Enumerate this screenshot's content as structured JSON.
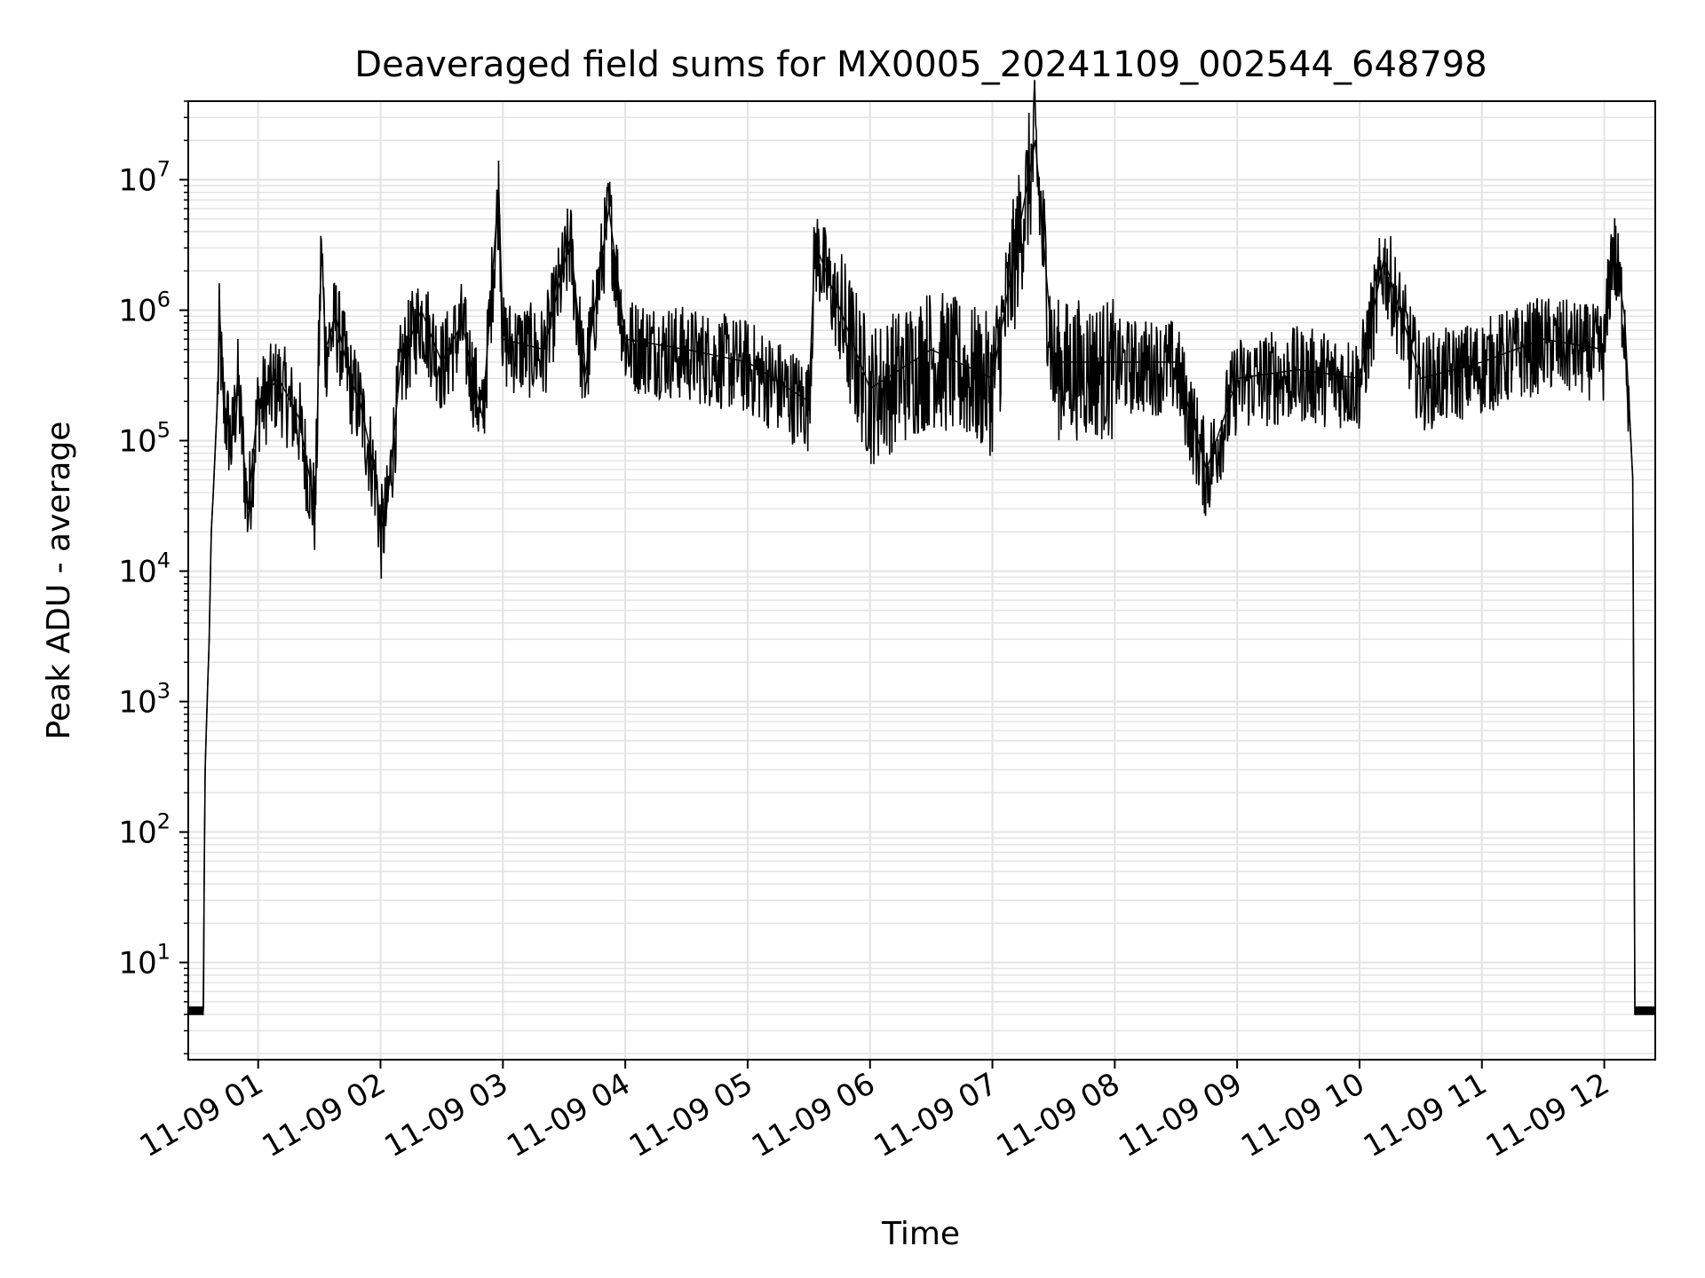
{
  "chart_data": {
    "type": "line",
    "title": "Deaveraged field sums for MX0005_20241109_002544_648798",
    "xlabel": "Time",
    "ylabel": "Peak ADU - average",
    "yscale": "log",
    "grid": true,
    "legend": "none",
    "line_color": "#000000",
    "x_tick_labels": [
      "11-09 01",
      "11-09 02",
      "11-09 03",
      "11-09 04",
      "11-09 05",
      "11-09 06",
      "11-09 07",
      "11-09 08",
      "11-09 09",
      "11-09 10",
      "11-09 11",
      "11-09 12"
    ],
    "y_tick_labels": [
      {
        "base": "10",
        "exp": "1"
      },
      {
        "base": "10",
        "exp": "2"
      },
      {
        "base": "10",
        "exp": "3"
      },
      {
        "base": "10",
        "exp": "4"
      },
      {
        "base": "10",
        "exp": "5"
      },
      {
        "base": "10",
        "exp": "6"
      },
      {
        "base": "10",
        "exp": "7"
      }
    ],
    "xlim": [
      "2024-11-09 00:25:44",
      "2024-11-09 12:25:00"
    ],
    "ylim": [
      1.8,
      40000000
    ],
    "series": [
      {
        "points": [
          [
            "2024-11-09 00:26",
            4
          ],
          [
            "2024-11-09 00:33",
            4
          ],
          [
            "2024-11-09 00:34",
            300
          ],
          [
            "2024-11-09 00:35",
            1000
          ],
          [
            "2024-11-09 00:36",
            3000
          ],
          [
            "2024-11-09 00:37",
            20000
          ],
          [
            "2024-11-09 00:38",
            40000
          ],
          [
            "2024-11-09 00:40",
            200000
          ],
          [
            "2024-11-09 00:41",
            800000
          ],
          [
            "2024-11-09 00:43",
            200000
          ],
          [
            "2024-11-09 00:47",
            100000
          ],
          [
            "2024-11-09 00:50",
            300000
          ],
          [
            "2024-11-09 00:55",
            30000
          ],
          [
            "2024-11-09 01:00",
            200000
          ],
          [
            "2024-11-09 01:10",
            300000
          ],
          [
            "2024-11-09 01:20",
            150000
          ],
          [
            "2024-11-09 01:28",
            30000
          ],
          [
            "2024-11-09 01:31",
            3500000
          ],
          [
            "2024-11-09 01:33",
            500000
          ],
          [
            "2024-11-09 01:38",
            900000
          ],
          [
            "2024-11-09 01:45",
            300000
          ],
          [
            "2024-11-09 01:50",
            200000
          ],
          [
            "2024-11-09 01:58",
            50000
          ],
          [
            "2024-11-09 02:00",
            20000
          ],
          [
            "2024-11-09 02:03",
            30000
          ],
          [
            "2024-11-09 02:10",
            400000
          ],
          [
            "2024-11-09 02:20",
            1000000
          ],
          [
            "2024-11-09 02:30",
            400000
          ],
          [
            "2024-11-09 02:40",
            800000
          ],
          [
            "2024-11-09 02:50",
            150000
          ],
          [
            "2024-11-09 02:58",
            9000000
          ],
          [
            "2024-11-09 03:00",
            600000
          ],
          [
            "2024-11-09 03:20",
            500000
          ],
          [
            "2024-11-09 03:33",
            3500000
          ],
          [
            "2024-11-09 03:40",
            300000
          ],
          [
            "2024-11-09 03:52",
            6000000
          ],
          [
            "2024-11-09 04:00",
            600000
          ],
          [
            "2024-11-09 04:30",
            500000
          ],
          [
            "2024-11-09 05:00",
            400000
          ],
          [
            "2024-11-09 05:30",
            200000
          ],
          [
            "2024-11-09 05:33",
            3300000
          ],
          [
            "2024-11-09 06:00",
            250000
          ],
          [
            "2024-11-09 06:30",
            500000
          ],
          [
            "2024-11-09 07:00",
            300000
          ],
          [
            "2024-11-09 07:21",
            20000000
          ],
          [
            "2024-11-09 07:30",
            400000
          ],
          [
            "2024-11-09 08:00",
            400000
          ],
          [
            "2024-11-09 08:30",
            400000
          ],
          [
            "2024-11-09 08:45",
            60000
          ],
          [
            "2024-11-09 09:00",
            300000
          ],
          [
            "2024-11-09 09:30",
            350000
          ],
          [
            "2024-11-09 10:00",
            300000
          ],
          [
            "2024-11-09 10:12",
            2500000
          ],
          [
            "2024-11-09 10:30",
            300000
          ],
          [
            "2024-11-09 11:00",
            400000
          ],
          [
            "2024-11-09 11:30",
            600000
          ],
          [
            "2024-11-09 12:00",
            500000
          ],
          [
            "2024-11-09 12:04",
            3500000
          ],
          [
            "2024-11-09 12:10",
            900000
          ],
          [
            "2024-11-09 12:14",
            50000
          ],
          [
            "2024-11-09 12:15",
            4
          ],
          [
            "2024-11-09 12:25",
            4
          ]
        ]
      }
    ]
  }
}
